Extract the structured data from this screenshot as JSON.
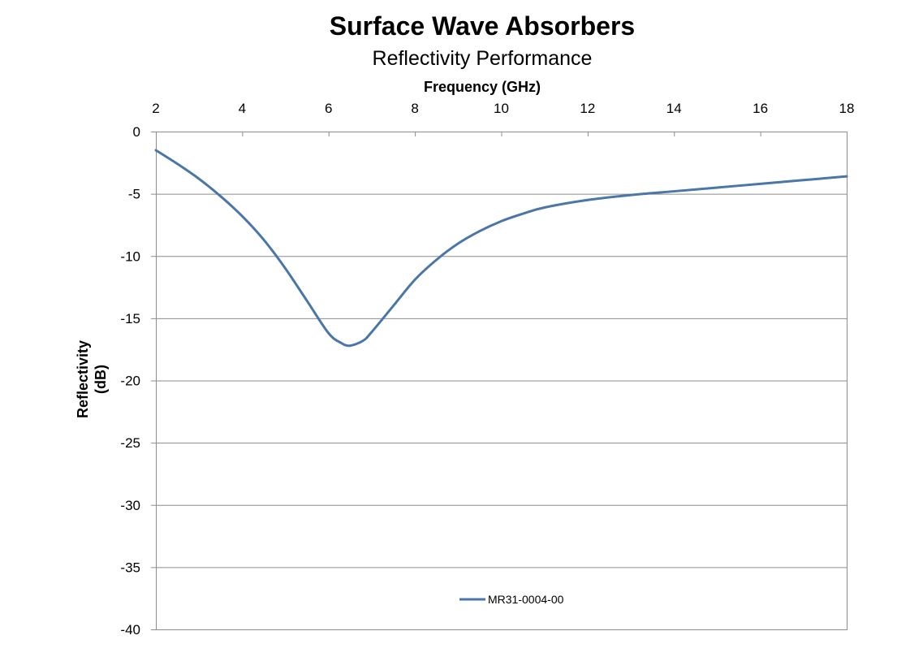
{
  "chart_data": {
    "type": "line",
    "title": "Surface Wave Absorbers",
    "subtitle": "Reflectivity Performance",
    "xlabel": "Frequency (GHz)",
    "ylabel_lines": [
      "Reflectivity",
      "(dB)"
    ],
    "x_axis_position": "top",
    "xlim": [
      2,
      18
    ],
    "ylim": [
      -40,
      0
    ],
    "x_ticks": [
      2,
      4,
      6,
      8,
      10,
      12,
      14,
      16,
      18
    ],
    "y_ticks": [
      0,
      -5,
      -10,
      -15,
      -20,
      -25,
      -30,
      -35,
      -40
    ],
    "grid": "horizontal",
    "legend_position": "bottom-center",
    "series": [
      {
        "name": "MR31-0004-00",
        "color": "#4a76a8",
        "x": [
          2,
          2.5,
          3,
          3.5,
          4,
          4.5,
          5,
          5.5,
          6,
          6.3,
          6.5,
          6.8,
          7,
          7.5,
          8,
          8.5,
          9,
          9.5,
          10,
          10.5,
          11,
          12,
          13,
          14,
          15,
          16,
          17,
          18
        ],
        "y": [
          -1.5,
          -2.6,
          -3.8,
          -5.2,
          -6.8,
          -8.7,
          -11.0,
          -13.6,
          -16.2,
          -17.0,
          -17.2,
          -16.8,
          -16.1,
          -14.0,
          -11.9,
          -10.3,
          -9.0,
          -8.0,
          -7.2,
          -6.6,
          -6.1,
          -5.5,
          -5.1,
          -4.8,
          -4.5,
          -4.2,
          -3.9,
          -3.6
        ]
      }
    ]
  }
}
